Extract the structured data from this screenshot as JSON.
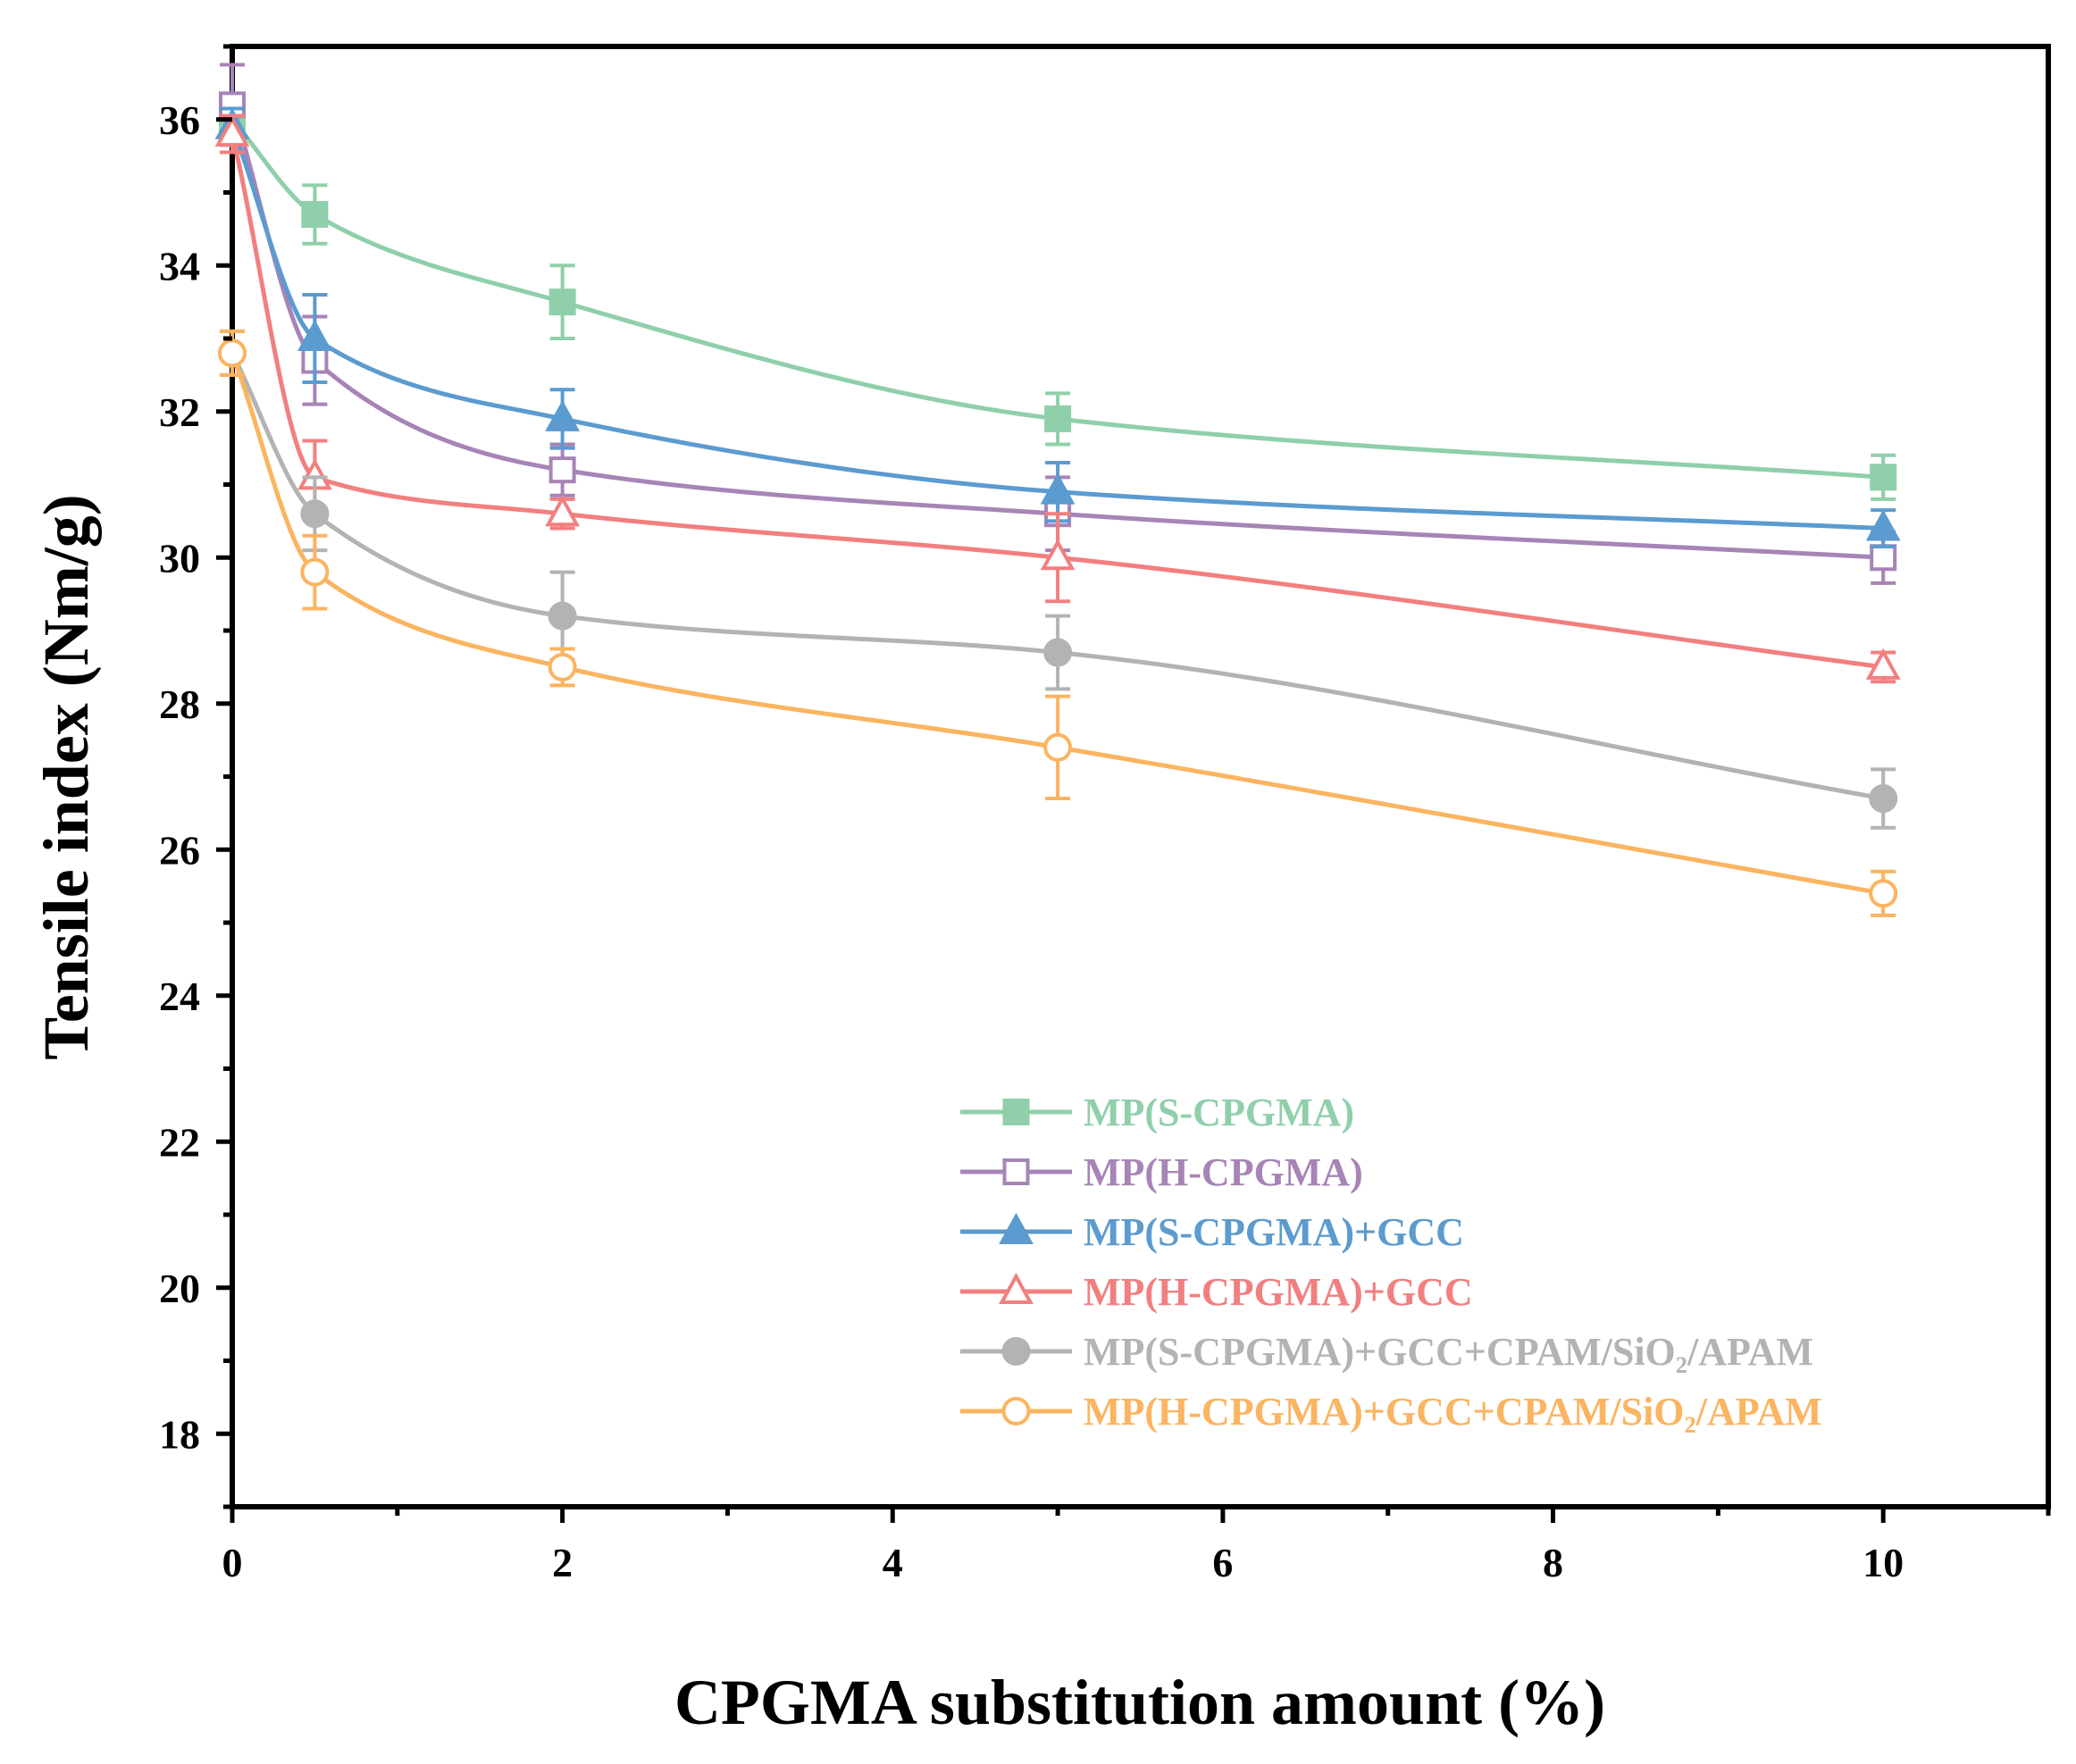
{
  "chart_data": {
    "type": "line",
    "title": "",
    "xlabel": "CPGMA substitution amount (%)",
    "ylabel": "Tensile index (Nm/g)",
    "xlim": [
      0,
      11
    ],
    "ylim": [
      17,
      37
    ],
    "xticks": [
      0,
      2,
      4,
      6,
      8,
      10
    ],
    "yticks": [
      18,
      20,
      22,
      24,
      26,
      28,
      30,
      32,
      34,
      36
    ],
    "legend_position": "bottom-right",
    "series": [
      {
        "name": "MP(S-CPGMA)",
        "color": "#8fcfaa",
        "marker": "square-filled",
        "x": [
          0,
          0.5,
          2,
          5,
          10
        ],
        "values": [
          36.0,
          34.7,
          33.5,
          31.9,
          31.1
        ],
        "errors": [
          0.3,
          0.4,
          0.5,
          0.35,
          0.3
        ]
      },
      {
        "name": "MP(H-CPGMA)",
        "color": "#a784b7",
        "marker": "square-open",
        "x": [
          0,
          0.5,
          2,
          5,
          10
        ],
        "values": [
          36.2,
          32.7,
          31.2,
          30.6,
          30.0
        ],
        "errors": [
          0.55,
          0.6,
          0.35,
          0.5,
          0.35
        ]
      },
      {
        "name": "MP(S-CPGMA)+GCC",
        "color": "#5b9bcf",
        "marker": "triangle-filled",
        "x": [
          0,
          0.5,
          2,
          5,
          10
        ],
        "values": [
          35.9,
          33.0,
          31.9,
          30.9,
          30.4
        ],
        "errors": [
          0.25,
          0.6,
          0.4,
          0.4,
          0.25
        ]
      },
      {
        "name": "MP(H-CPGMA)+GCC",
        "color": "#f27f7f",
        "marker": "triangle-open",
        "x": [
          0,
          0.5,
          2,
          5,
          10
        ],
        "values": [
          35.8,
          31.1,
          30.6,
          30.0,
          28.5
        ],
        "errors": [
          0.25,
          0.5,
          0.2,
          0.6,
          0.2
        ]
      },
      {
        "name": "MP(S-CPGMA)+GCC+CPAM/SiO₂/APAM",
        "color": "#b3b3b3",
        "marker": "circle-filled",
        "x": [
          0,
          0.5,
          2,
          5,
          10
        ],
        "values": [
          32.8,
          30.6,
          29.2,
          28.7,
          26.7
        ],
        "errors": [
          0.3,
          0.5,
          0.6,
          0.5,
          0.4
        ]
      },
      {
        "name": "MP(H-CPGMA)+GCC+CPAM/SiO₂/APAM",
        "color": "#fbb460",
        "marker": "circle-open",
        "x": [
          0,
          0.5,
          2,
          5,
          10
        ],
        "values": [
          32.8,
          29.8,
          28.5,
          27.4,
          25.4
        ],
        "errors": [
          0.3,
          0.5,
          0.25,
          0.7,
          0.3
        ]
      }
    ]
  }
}
